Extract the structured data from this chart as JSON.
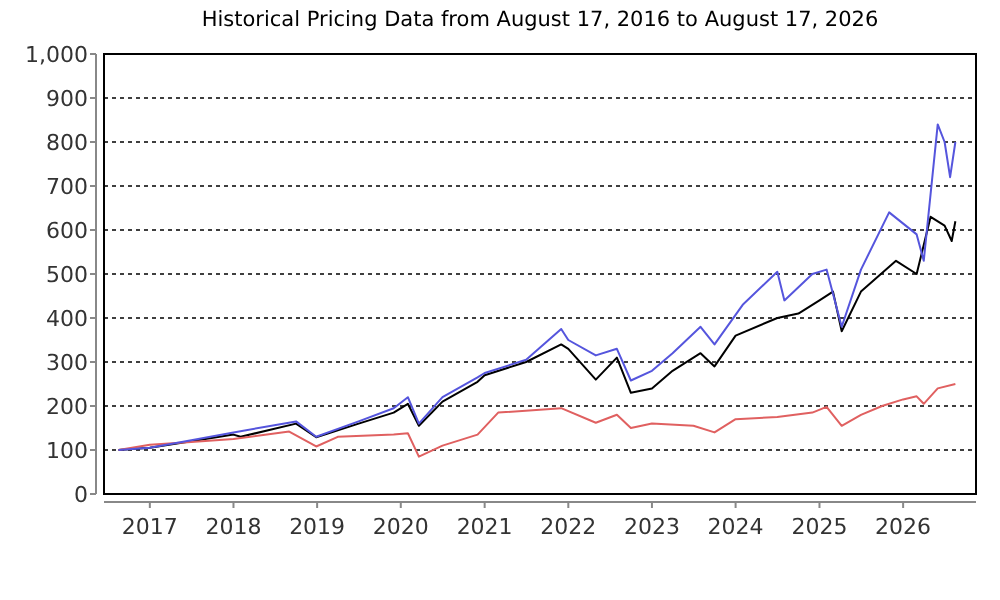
{
  "chart_data": {
    "type": "line",
    "title": "Historical Pricing Data from August 17, 2016 to August 17, 2026",
    "xlim": [
      "2016-06-15",
      "2026-11-15"
    ],
    "xticks": [
      "2017",
      "2018",
      "2019",
      "2020",
      "2021",
      "2022",
      "2023",
      "2024",
      "2025",
      "2026"
    ],
    "ylim": [
      0,
      1000
    ],
    "yticks": [
      0,
      100,
      200,
      300,
      400,
      500,
      600,
      700,
      800,
      900,
      {
        "value": 1000,
        "label": "1,000"
      }
    ],
    "grid": "y",
    "line_style": "solid",
    "series": [
      {
        "color": "#000000",
        "x": [
          "2016-08-17",
          "2017-01",
          "2017-07",
          "2018-01",
          "2018-02",
          "2018-10",
          "2018-12-28",
          "2019-07",
          "2019-12",
          "2020-02",
          "2020-03-20",
          "2020-07",
          "2020-12",
          "2021-01",
          "2021-07",
          "2021-12",
          "2022-01",
          "2022-05",
          "2022-08",
          "2022-10",
          "2023-01",
          "2023-04",
          "2023-08",
          "2023-10",
          "2024-01",
          "2024-07",
          "2024-10",
          "2025-01",
          "2025-03",
          "2025-04-08",
          "2025-07",
          "2025-12",
          "2026-03",
          "2026-05",
          "2026-07",
          "2026-08-01",
          "2026-08-17"
        ],
        "values": [
          100,
          105,
          120,
          135,
          130,
          160,
          129,
          160,
          185,
          205,
          155,
          210,
          255,
          270,
          300,
          340,
          330,
          260,
          310,
          230,
          240,
          280,
          320,
          290,
          360,
          400,
          410,
          440,
          460,
          370,
          460,
          530,
          500,
          630,
          610,
          575,
          620
        ]
      },
      {
        "color": "#e06060",
        "x": [
          "2016-08-17",
          "2017-01",
          "2017-07",
          "2018-01",
          "2018-09",
          "2018-12-28",
          "2019-04",
          "2019-12",
          "2020-02",
          "2020-03-20",
          "2020-07",
          "2020-12",
          "2021-03",
          "2021-12",
          "2022-05",
          "2022-08",
          "2022-10",
          "2023-01",
          "2023-07",
          "2023-10",
          "2024-01",
          "2024-07",
          "2024-12",
          "2025-02",
          "2025-04-08",
          "2025-07",
          "2025-10",
          "2026-01",
          "2026-03",
          "2026-04",
          "2026-06",
          "2026-08-17"
        ],
        "values": [
          100,
          112,
          118,
          125,
          142,
          108,
          130,
          135,
          138,
          85,
          110,
          135,
          185,
          195,
          162,
          180,
          150,
          160,
          155,
          140,
          170,
          175,
          185,
          198,
          155,
          180,
          200,
          215,
          222,
          205,
          240,
          250
        ]
      },
      {
        "color": "#5555dd",
        "x": [
          "2016-08-17",
          "2017-01",
          "2017-07",
          "2018-01",
          "2018-10",
          "2018-12-28",
          "2019-07",
          "2019-12",
          "2020-02",
          "2020-03-20",
          "2020-07",
          "2020-12",
          "2021-01",
          "2021-07",
          "2021-12",
          "2022-01",
          "2022-05",
          "2022-08",
          "2022-10",
          "2023-01",
          "2023-04",
          "2023-08",
          "2023-10",
          "2024-02",
          "2024-07",
          "2024-08",
          "2024-12",
          "2025-02",
          "2025-04-08",
          "2025-07",
          "2025-11",
          "2026-03",
          "2026-04",
          "2026-06",
          "2026-07",
          "2026-07-25",
          "2026-08-17"
        ],
        "values": [
          100,
          105,
          122,
          140,
          165,
          130,
          165,
          195,
          220,
          160,
          220,
          265,
          275,
          305,
          375,
          350,
          315,
          330,
          258,
          280,
          320,
          380,
          340,
          430,
          505,
          440,
          500,
          510,
          380,
          510,
          640,
          590,
          530,
          840,
          800,
          720,
          800
        ]
      }
    ]
  }
}
